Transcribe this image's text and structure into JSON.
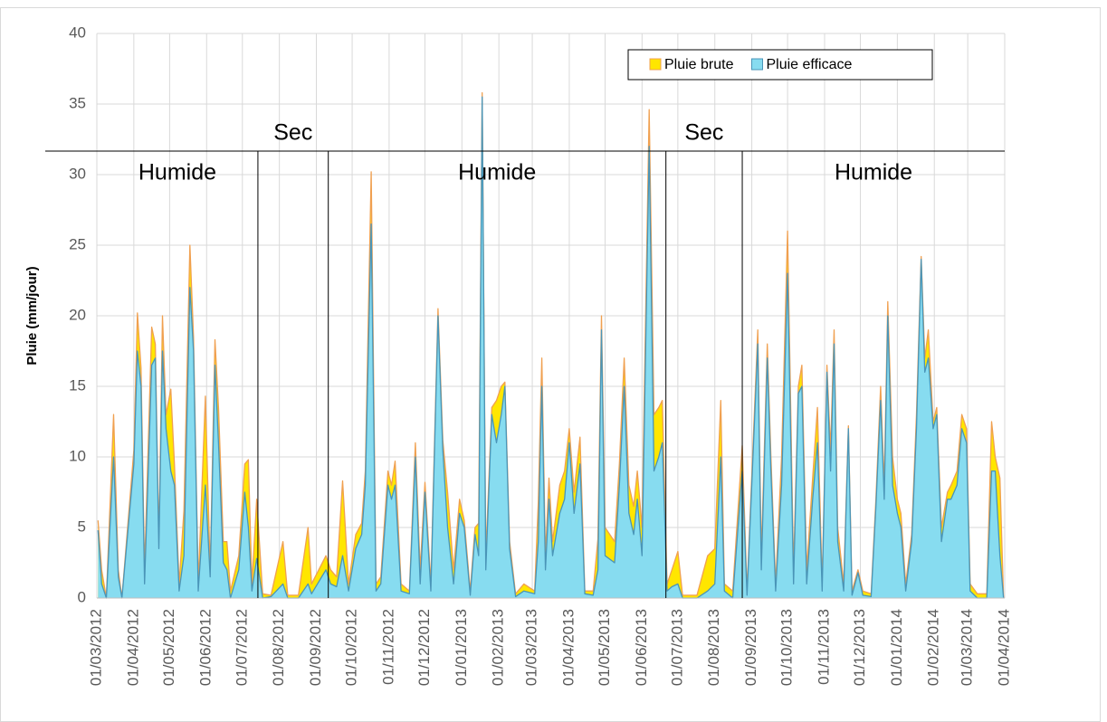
{
  "chart_data": {
    "type": "area",
    "y_label": "Pluie (mm/jour)",
    "ylim": [
      0,
      40
    ],
    "yticks": [
      0,
      5,
      10,
      15,
      20,
      25,
      30,
      35,
      40
    ],
    "xlim": [
      "01/03/2012",
      "01/04/2014"
    ],
    "xticks": [
      "01/03/2012",
      "01/04/2012",
      "01/05/2012",
      "01/06/2012",
      "01/07/2012",
      "01/08/2012",
      "01/09/2012",
      "01/10/2012",
      "01/11/2012",
      "01/12/2012",
      "01/01/2013",
      "01/02/2013",
      "01/03/2013",
      "01/04/2013",
      "01/05/2013",
      "01/06/2013",
      "01/07/2013",
      "01/08/2013",
      "01/09/2013",
      "01/10/2013",
      "01/11/2013",
      "01/12/2013",
      "01/01/2014",
      "01/02/2014",
      "01/03/2014",
      "01/04/2014"
    ],
    "grid": true,
    "legend": "top-right",
    "periods": [
      {
        "label": "Humide",
        "start": "01/03/2012",
        "end": "14/07/2012"
      },
      {
        "label": "Sec",
        "start": "14/07/2012",
        "end": "11/09/2012"
      },
      {
        "label": "Humide",
        "start": "11/09/2012",
        "end": "21/06/2013"
      },
      {
        "label": "Sec",
        "start": "21/06/2013",
        "end": "24/08/2013"
      },
      {
        "label": "Humide",
        "start": "24/08/2013",
        "end": "01/04/2014"
      }
    ],
    "x": [
      "02/03/2012",
      "05/03/2012",
      "09/03/2012",
      "15/03/2012",
      "19/03/2012",
      "22/03/2012",
      "01/04/2012",
      "04/04/2012",
      "07/04/2012",
      "10/04/2012",
      "16/04/2012",
      "19/04/2012",
      "22/04/2012",
      "25/04/2012",
      "28/04/2012",
      "02/05/2012",
      "05/05/2012",
      "09/05/2012",
      "13/05/2012",
      "18/05/2012",
      "21/05/2012",
      "25/05/2012",
      "31/05/2012",
      "04/06/2012",
      "08/06/2012",
      "11/06/2012",
      "15/06/2012",
      "18/06/2012",
      "21/06/2012",
      "28/06/2012",
      "03/07/2012",
      "06/07/2012",
      "09/07/2012",
      "13/07/2012",
      "18/07/2012",
      "25/07/2012",
      "04/08/2012",
      "08/08/2012",
      "17/08/2012",
      "25/08/2012",
      "28/08/2012",
      "09/09/2012",
      "13/09/2012",
      "18/09/2012",
      "23/09/2012",
      "28/09/2012",
      "04/10/2012",
      "09/10/2012",
      "12/10/2012",
      "17/10/2012",
      "21/10/2012",
      "25/10/2012",
      "31/10/2012",
      "03/11/2012",
      "06/11/2012",
      "11/11/2012",
      "18/11/2012",
      "23/11/2012",
      "27/11/2012",
      "01/12/2012",
      "06/12/2012",
      "12/12/2012",
      "16/12/2012",
      "20/12/2012",
      "25/12/2012",
      "30/12/2012",
      "03/01/2013",
      "08/01/2013",
      "12/01/2013",
      "15/01/2013",
      "18/01/2013",
      "21/01/2013",
      "26/01/2013",
      "30/01/2013",
      "03/02/2013",
      "06/02/2013",
      "10/02/2013",
      "15/02/2013",
      "22/02/2013",
      "03/03/2013",
      "06/03/2013",
      "09/03/2013",
      "12/03/2013",
      "15/03/2013",
      "18/03/2013",
      "24/03/2013",
      "28/03/2013",
      "01/04/2013",
      "05/04/2013",
      "10/04/2013",
      "14/04/2013",
      "21/04/2013",
      "25/04/2013",
      "28/04/2013",
      "01/05/2013",
      "09/05/2013",
      "13/05/2013",
      "17/05/2013",
      "21/05/2013",
      "25/05/2013",
      "28/05/2013",
      "01/06/2013",
      "07/06/2013",
      "11/06/2013",
      "15/06/2013",
      "18/06/2013",
      "22/06/2013",
      "26/06/2013",
      "01/07/2013",
      "05/07/2013",
      "17/07/2013",
      "26/07/2013",
      "01/08/2013",
      "06/08/2013",
      "09/08/2013",
      "16/08/2013",
      "24/08/2013",
      "28/08/2013",
      "06/09/2013",
      "09/09/2013",
      "14/09/2013",
      "17/09/2013",
      "21/09/2013",
      "26/09/2013",
      "01/10/2013",
      "06/10/2013",
      "10/10/2013",
      "13/10/2013",
      "17/10/2013",
      "22/10/2013",
      "26/10/2013",
      "30/10/2013",
      "03/11/2013",
      "06/11/2013",
      "09/11/2013",
      "12/11/2013",
      "17/11/2013",
      "21/11/2013",
      "24/11/2013",
      "29/11/2013",
      "03/12/2013",
      "10/12/2013",
      "14/12/2013",
      "18/12/2013",
      "21/12/2013",
      "24/12/2013",
      "28/12/2013",
      "01/01/2014",
      "04/01/2014",
      "08/01/2014",
      "13/01/2014",
      "17/01/2014",
      "21/01/2014",
      "24/01/2014",
      "27/01/2014",
      "31/01/2014",
      "03/02/2014",
      "07/02/2014",
      "12/02/2014",
      "15/02/2014",
      "20/02/2014",
      "24/02/2014",
      "28/02/2014",
      "03/03/2014",
      "09/03/2014",
      "17/03/2014",
      "21/03/2014",
      "24/03/2014",
      "28/03/2014",
      "31/03/2014"
    ],
    "series": [
      {
        "name": "Pluie brute",
        "color": "#ffe600",
        "line_color": "#f0a050",
        "values": [
          5.5,
          2,
          0,
          13,
          2,
          0,
          10.5,
          20.2,
          16.3,
          2,
          19.2,
          18,
          4,
          20,
          13,
          14.8,
          9.5,
          1,
          6.2,
          25,
          18.5,
          1,
          14.3,
          2,
          18.3,
          13.5,
          4,
          4,
          0.5,
          3,
          9.5,
          9.8,
          1,
          7,
          0.3,
          0.2,
          4,
          0.2,
          0.2,
          5,
          1,
          3,
          2,
          1.5,
          8.3,
          1,
          4.5,
          5.3,
          9,
          30.2,
          1,
          1.5,
          9,
          8,
          9.7,
          1,
          0.5,
          11,
          2,
          8.2,
          1,
          20.5,
          11.2,
          7.5,
          2,
          7,
          5.5,
          0.5,
          5,
          5.3,
          35.8,
          3,
          13.5,
          14,
          15,
          15.3,
          4,
          0.3,
          1,
          0.5,
          6.8,
          17,
          3,
          8.5,
          4,
          8,
          9,
          12,
          7.5,
          11.4,
          0.5,
          0.5,
          4.2,
          20,
          5,
          4,
          9.5,
          17,
          8,
          6.5,
          9,
          5,
          34.6,
          13,
          13.5,
          14,
          1,
          2,
          3.3,
          0.2,
          0.2,
          3,
          3.5,
          14,
          1,
          0.5,
          10.8,
          0.5,
          19,
          3,
          18,
          10,
          1,
          10,
          26,
          2,
          15,
          16.5,
          2,
          8.5,
          13.5,
          1,
          16.5,
          10.5,
          19,
          5,
          1,
          12.2,
          0.5,
          2,
          0.5,
          0.3,
          7,
          15,
          8,
          21,
          10,
          7,
          6,
          1,
          4.5,
          13,
          24.2,
          17,
          19,
          12.5,
          13.5,
          5,
          7.5,
          8,
          9,
          13,
          12,
          1,
          0.3,
          0.3,
          12.5,
          10,
          8.5,
          0
        ]
      },
      {
        "name": "Pluie efficace",
        "color": "#87dcf0",
        "line_color": "#4a95b8",
        "values": [
          4.8,
          1,
          0,
          10,
          1.5,
          0,
          9.5,
          17.5,
          15,
          1,
          16.5,
          17,
          3.5,
          17.5,
          12,
          9,
          8,
          0.5,
          3,
          22,
          17.5,
          0.5,
          8,
          1.5,
          16.5,
          11,
          2.5,
          2,
          0,
          2,
          7.5,
          5,
          0.5,
          2.8,
          0,
          0.1,
          1,
          0,
          0,
          1,
          0.3,
          2,
          1,
          0.8,
          3,
          0.5,
          3.5,
          4.5,
          8,
          26.5,
          0.5,
          1,
          8,
          7,
          8,
          0.5,
          0.3,
          10,
          1,
          7.5,
          0.5,
          20,
          10.5,
          5,
          1,
          6,
          5,
          0.2,
          4.5,
          3,
          35.5,
          2,
          13,
          11,
          13,
          15,
          3.5,
          0.1,
          0.5,
          0.3,
          4,
          15,
          2,
          7,
          3,
          6,
          7,
          11,
          6,
          9.5,
          0.3,
          0.2,
          2,
          19,
          3,
          2.5,
          8,
          15,
          6,
          4.5,
          7,
          3,
          32,
          9,
          10,
          11,
          0.5,
          0.8,
          1,
          0,
          0,
          0.5,
          1,
          10,
          0.5,
          0,
          9,
          0.2,
          18,
          2,
          17,
          9,
          0.5,
          8,
          23,
          1,
          14.5,
          15,
          1,
          7,
          11,
          0.5,
          16,
          9,
          18,
          4,
          0.5,
          12,
          0.2,
          1.8,
          0.2,
          0.1,
          6.5,
          14,
          7,
          20,
          8,
          6,
          5,
          0.5,
          4,
          12,
          24,
          16,
          17,
          12,
          13,
          4,
          7,
          7,
          8,
          12,
          11,
          0.5,
          0,
          0,
          9,
          9,
          3,
          0
        ]
      }
    ]
  }
}
